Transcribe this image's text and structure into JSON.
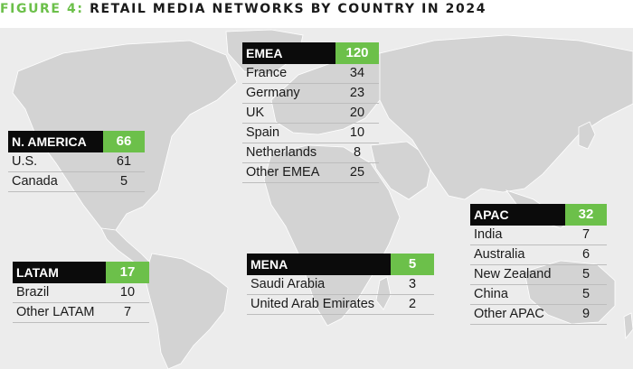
{
  "title": {
    "label": "FIGURE 4:",
    "text": "RETAIL MEDIA NETWORKS BY COUNTRY IN 2024"
  },
  "colors": {
    "accent": "#6cc04a",
    "header": "#0b0b0b",
    "map_land": "#d3d3d3",
    "map_bg": "#ececec"
  },
  "regions": {
    "emea": {
      "name": "EMEA",
      "total": "120",
      "rows": [
        {
          "country": "France",
          "value": "34"
        },
        {
          "country": "Germany",
          "value": "23"
        },
        {
          "country": "UK",
          "value": "20"
        },
        {
          "country": "Spain",
          "value": "10"
        },
        {
          "country": "Netherlands",
          "value": "8"
        },
        {
          "country": "Other EMEA",
          "value": "25"
        }
      ]
    },
    "namerica": {
      "name": "N. AMERICA",
      "total": "66",
      "rows": [
        {
          "country": "U.S.",
          "value": "61"
        },
        {
          "country": "Canada",
          "value": "5"
        }
      ]
    },
    "apac": {
      "name": "APAC",
      "total": "32",
      "rows": [
        {
          "country": "India",
          "value": "7"
        },
        {
          "country": "Australia",
          "value": "6"
        },
        {
          "country": "New Zealand",
          "value": "5"
        },
        {
          "country": "China",
          "value": "5"
        },
        {
          "country": "Other APAC",
          "value": "9"
        }
      ]
    },
    "latam": {
      "name": "LATAM",
      "total": "17",
      "rows": [
        {
          "country": "Brazil",
          "value": "10"
        },
        {
          "country": "Other LATAM",
          "value": "7"
        }
      ]
    },
    "mena": {
      "name": "MENA",
      "total": "5",
      "rows": [
        {
          "country": "Saudi Arabia",
          "value": "3"
        },
        {
          "country": "United Arab Emirates",
          "value": "2"
        }
      ]
    }
  }
}
